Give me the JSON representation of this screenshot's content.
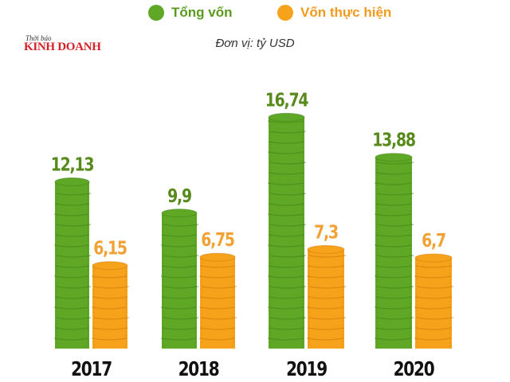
{
  "legend": {
    "items": [
      {
        "label": "Tổng vốn",
        "color": "#5fa826"
      },
      {
        "label": "Vốn thực hiện",
        "color": "#f7a21b"
      }
    ]
  },
  "unit_note": "Đơn vị: tỷ USD",
  "logo": {
    "small": "Thời báo",
    "big": "KINH DOANH"
  },
  "colors": {
    "green": "#5fa826",
    "green_dark": "#3f7f16",
    "orange": "#f7a21b",
    "orange_dark": "#c97a0a",
    "label_green": "#578a1a",
    "label_orange": "#f2a134",
    "year": "#111111"
  },
  "chart_data": {
    "type": "bar",
    "categories": [
      "2017",
      "2018",
      "2019",
      "2020"
    ],
    "series": [
      {
        "name": "Tổng vốn",
        "values": [
          12.13,
          9.9,
          16.74,
          13.88
        ],
        "labels": [
          "12,13",
          "9,9",
          "16,74",
          "13,88"
        ]
      },
      {
        "name": "Vốn thực hiện",
        "values": [
          6.15,
          6.75,
          7.3,
          6.7
        ],
        "labels": [
          "6,15",
          "6,75",
          "7,3",
          "6,7"
        ]
      }
    ],
    "ylim": [
      0,
      18
    ],
    "grid": false,
    "legend_position": "top"
  }
}
